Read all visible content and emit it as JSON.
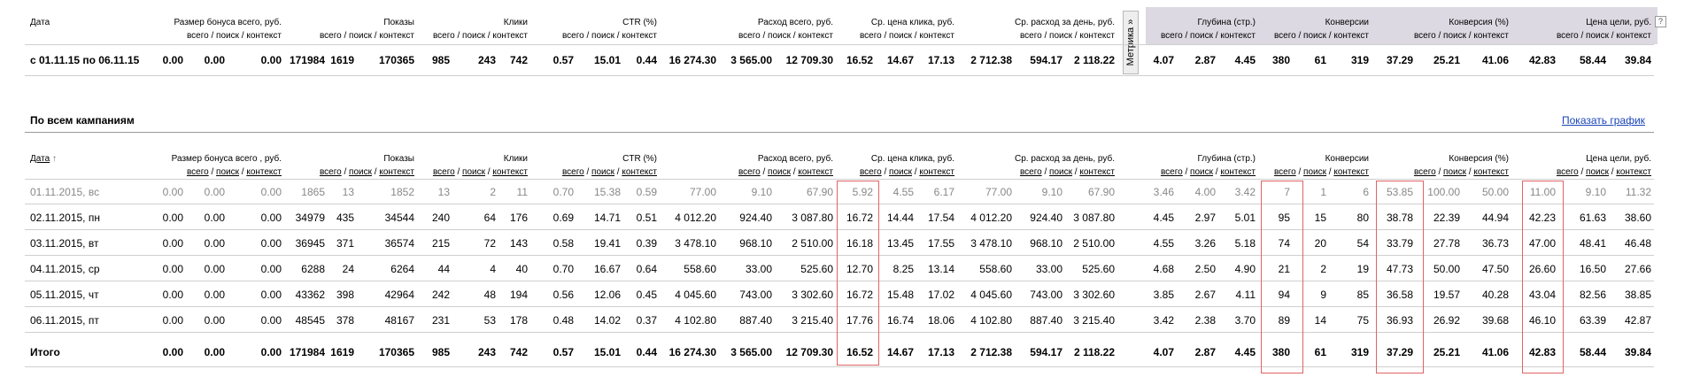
{
  "summary": {
    "headers": {
      "date": "Дата",
      "bonus": {
        "title": "Размер бонуса всего, руб.",
        "sub": "всего / поиск / контекст"
      },
      "shows": {
        "title": "Показы",
        "sub": "всего / поиск / контекст"
      },
      "clicks": {
        "title": "Клики",
        "sub": "всего / поиск / контекст"
      },
      "ctr": {
        "title": "CTR (%)",
        "sub": "всего / поиск / контекст"
      },
      "spend": {
        "title": "Расход всего, руб.",
        "sub": "всего / поиск / контекст"
      },
      "cpc": {
        "title": "Ср. цена клика, руб.",
        "sub": "всего / поиск / контекст"
      },
      "daily": {
        "title": "Ср. расход за день, руб.",
        "sub": "всего / поиск / контекст"
      },
      "depth": {
        "title": "Глубина (стр.)",
        "sub": "всего / поиск / контекст"
      },
      "conv": {
        "title": "Конверсии",
        "sub": "всего / поиск / контекст"
      },
      "convpct": {
        "title": "Конверсия (%)",
        "sub": "всего / поиск / контекст"
      },
      "goal": {
        "title": "Цена цели, руб.",
        "sub": "всего / поиск / контекст"
      }
    },
    "metrika_label": "Метрика »",
    "help_icon": "?",
    "row": {
      "date": "с 01.11.15 по 06.11.15",
      "values": [
        "0.00",
        "0.00",
        "0.00",
        "171984",
        "1619",
        "170365",
        "985",
        "243",
        "742",
        "0.57",
        "15.01",
        "0.44",
        "16 274.30",
        "3 565.00",
        "12 709.30",
        "16.52",
        "14.67",
        "17.13",
        "2 712.38",
        "594.17",
        "2 118.22",
        "4.07",
        "2.87",
        "4.45",
        "380",
        "61",
        "319",
        "37.29",
        "25.21",
        "41.06",
        "42.83",
        "58.44",
        "39.84"
      ]
    }
  },
  "campaigns": {
    "title": "По всем кампаниям",
    "show_chart": "Показать график",
    "headers": {
      "date": "Дата",
      "date_arrow": "↑",
      "bonus": "Размер бонуса всего , руб.",
      "shows": "Показы",
      "clicks": "Клики",
      "ctr": "CTR (%)",
      "spend": "Расход всего, руб.",
      "cpc": "Ср. цена клика, руб.",
      "daily": "Ср. расход за день, руб.",
      "depth": "Глубина (стр.)",
      "conv": "Конверсии",
      "convpct": "Конверсия (%)",
      "goal": "Цена цели, руб.",
      "sub_all": "всего",
      "sub_search": "поиск",
      "sub_context": "контекст",
      "sep": "/"
    },
    "rows": [
      {
        "date": "01.11.2015, вс",
        "values": [
          "0.00",
          "0.00",
          "0.00",
          "1865",
          "13",
          "1852",
          "13",
          "2",
          "11",
          "0.70",
          "15.38",
          "0.59",
          "77.00",
          "9.10",
          "67.90",
          "5.92",
          "4.55",
          "6.17",
          "77.00",
          "9.10",
          "67.90",
          "3.46",
          "4.00",
          "3.42",
          "7",
          "1",
          "6",
          "53.85",
          "100.00",
          "50.00",
          "11.00",
          "9.10",
          "11.32"
        ]
      },
      {
        "date": "02.11.2015, пн",
        "values": [
          "0.00",
          "0.00",
          "0.00",
          "34979",
          "435",
          "34544",
          "240",
          "64",
          "176",
          "0.69",
          "14.71",
          "0.51",
          "4 012.20",
          "924.40",
          "3 087.80",
          "16.72",
          "14.44",
          "17.54",
          "4 012.20",
          "924.40",
          "3 087.80",
          "4.45",
          "2.97",
          "5.01",
          "95",
          "15",
          "80",
          "38.78",
          "22.39",
          "44.94",
          "42.23",
          "61.63",
          "38.60"
        ]
      },
      {
        "date": "03.11.2015, вт",
        "values": [
          "0.00",
          "0.00",
          "0.00",
          "36945",
          "371",
          "36574",
          "215",
          "72",
          "143",
          "0.58",
          "19.41",
          "0.39",
          "3 478.10",
          "968.10",
          "2 510.00",
          "16.18",
          "13.45",
          "17.55",
          "3 478.10",
          "968.10",
          "2 510.00",
          "4.55",
          "3.26",
          "5.18",
          "74",
          "20",
          "54",
          "33.79",
          "27.78",
          "36.73",
          "47.00",
          "48.41",
          "46.48"
        ]
      },
      {
        "date": "04.11.2015, ср",
        "values": [
          "0.00",
          "0.00",
          "0.00",
          "6288",
          "24",
          "6264",
          "44",
          "4",
          "40",
          "0.70",
          "16.67",
          "0.64",
          "558.60",
          "33.00",
          "525.60",
          "12.70",
          "8.25",
          "13.14",
          "558.60",
          "33.00",
          "525.60",
          "4.68",
          "2.50",
          "4.90",
          "21",
          "2",
          "19",
          "47.73",
          "50.00",
          "47.50",
          "26.60",
          "16.50",
          "27.66"
        ]
      },
      {
        "date": "05.11.2015, чт",
        "values": [
          "0.00",
          "0.00",
          "0.00",
          "43362",
          "398",
          "42964",
          "242",
          "48",
          "194",
          "0.56",
          "12.06",
          "0.45",
          "4 045.60",
          "743.00",
          "3 302.60",
          "16.72",
          "15.48",
          "17.02",
          "4 045.60",
          "743.00",
          "3 302.60",
          "3.85",
          "2.67",
          "4.11",
          "94",
          "9",
          "85",
          "36.58",
          "19.57",
          "40.28",
          "43.04",
          "82.56",
          "38.85"
        ]
      },
      {
        "date": "06.11.2015, пт",
        "values": [
          "0.00",
          "0.00",
          "0.00",
          "48545",
          "378",
          "48167",
          "231",
          "53",
          "178",
          "0.48",
          "14.02",
          "0.37",
          "4 102.80",
          "887.40",
          "3 215.40",
          "17.76",
          "16.74",
          "18.06",
          "4 102.80",
          "887.40",
          "3 215.40",
          "3.42",
          "2.38",
          "3.70",
          "89",
          "14",
          "75",
          "36.93",
          "26.92",
          "39.68",
          "46.10",
          "63.39",
          "42.87"
        ]
      }
    ],
    "total": {
      "date": "Итого",
      "values": [
        "0.00",
        "0.00",
        "0.00",
        "171984",
        "1619",
        "170365",
        "985",
        "243",
        "742",
        "0.57",
        "15.01",
        "0.44",
        "16 274.30",
        "3 565.00",
        "12 709.30",
        "16.52",
        "14.67",
        "17.13",
        "2 712.38",
        "594.17",
        "2 118.22",
        "4.07",
        "2.87",
        "4.45",
        "380",
        "61",
        "319",
        "37.29",
        "25.21",
        "41.06",
        "42.83",
        "58.44",
        "39.84"
      ]
    }
  },
  "colors": {
    "metrika_band": "#dcd9e2",
    "highlight": "#e06464",
    "link": "#1a44b8",
    "muted": "#888888"
  }
}
